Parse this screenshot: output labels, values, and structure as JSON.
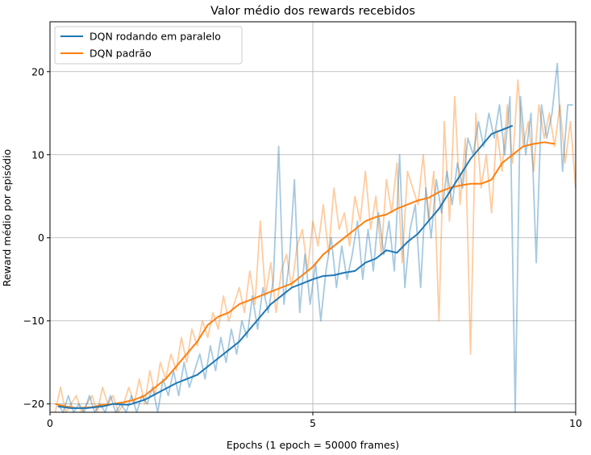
{
  "chart_data": {
    "type": "line",
    "title": "Valor médio dos rewards recebidos",
    "xlabel": "Epochs (1 epoch = 50000 frames)",
    "ylabel": "Reward médio por episódio",
    "xlim": [
      0,
      10
    ],
    "ylim": [
      -21,
      26
    ],
    "x_ticks": [
      0,
      5,
      10
    ],
    "y_ticks": [
      -20,
      -10,
      0,
      10,
      20
    ],
    "grid": true,
    "legend_position": "top-left",
    "series": [
      {
        "name": "DQN rodando em paralelo",
        "color": "#1f77b4",
        "smoothed": [
          [
            0.15,
            -20.3
          ],
          [
            0.4,
            -20.5
          ],
          [
            0.7,
            -20.5
          ],
          [
            1.0,
            -20.3
          ],
          [
            1.2,
            -20.0
          ],
          [
            1.5,
            -20.1
          ],
          [
            1.8,
            -19.5
          ],
          [
            2.1,
            -18.5
          ],
          [
            2.4,
            -17.5
          ],
          [
            2.6,
            -17.0
          ],
          [
            2.8,
            -16.5
          ],
          [
            3.0,
            -15.5
          ],
          [
            3.2,
            -14.5
          ],
          [
            3.4,
            -13.5
          ],
          [
            3.6,
            -12.5
          ],
          [
            3.8,
            -11.0
          ],
          [
            4.0,
            -9.5
          ],
          [
            4.2,
            -8.0
          ],
          [
            4.4,
            -7.0
          ],
          [
            4.6,
            -6.0
          ],
          [
            4.8,
            -5.5
          ],
          [
            5.0,
            -5.0
          ],
          [
            5.2,
            -4.6
          ],
          [
            5.4,
            -4.5
          ],
          [
            5.6,
            -4.2
          ],
          [
            5.8,
            -4.0
          ],
          [
            6.0,
            -3.0
          ],
          [
            6.2,
            -2.5
          ],
          [
            6.4,
            -1.5
          ],
          [
            6.6,
            -1.8
          ],
          [
            6.8,
            -0.5
          ],
          [
            7.0,
            0.5
          ],
          [
            7.2,
            2.0
          ],
          [
            7.4,
            3.5
          ],
          [
            7.6,
            5.5
          ],
          [
            7.8,
            7.5
          ],
          [
            8.0,
            9.5
          ],
          [
            8.2,
            11.0
          ],
          [
            8.4,
            12.5
          ],
          [
            8.6,
            13.0
          ],
          [
            8.8,
            13.5
          ]
        ],
        "raw": [
          [
            0.15,
            -20
          ],
          [
            0.25,
            -21
          ],
          [
            0.35,
            -19
          ],
          [
            0.45,
            -21
          ],
          [
            0.55,
            -20
          ],
          [
            0.65,
            -21
          ],
          [
            0.75,
            -19
          ],
          [
            0.85,
            -21
          ],
          [
            0.95,
            -20
          ],
          [
            1.05,
            -21
          ],
          [
            1.15,
            -19
          ],
          [
            1.25,
            -21
          ],
          [
            1.35,
            -20
          ],
          [
            1.45,
            -21
          ],
          [
            1.55,
            -19
          ],
          [
            1.65,
            -21
          ],
          [
            1.75,
            -19
          ],
          [
            1.85,
            -20
          ],
          [
            1.95,
            -18
          ],
          [
            2.05,
            -21
          ],
          [
            2.15,
            -17
          ],
          [
            2.25,
            -19
          ],
          [
            2.35,
            -16
          ],
          [
            2.45,
            -19
          ],
          [
            2.55,
            -15
          ],
          [
            2.65,
            -18
          ],
          [
            2.75,
            -16
          ],
          [
            2.85,
            -14
          ],
          [
            2.95,
            -17
          ],
          [
            3.05,
            -13
          ],
          [
            3.15,
            -16
          ],
          [
            3.25,
            -12
          ],
          [
            3.35,
            -15
          ],
          [
            3.45,
            -11
          ],
          [
            3.55,
            -14
          ],
          [
            3.65,
            -10
          ],
          [
            3.75,
            -12
          ],
          [
            3.85,
            -7
          ],
          [
            3.95,
            -11
          ],
          [
            4.05,
            -6
          ],
          [
            4.15,
            -9
          ],
          [
            4.25,
            -5
          ],
          [
            4.35,
            11
          ],
          [
            4.45,
            -8
          ],
          [
            4.55,
            -3
          ],
          [
            4.65,
            7
          ],
          [
            4.75,
            -9
          ],
          [
            4.85,
            -2
          ],
          [
            4.95,
            -8
          ],
          [
            5.05,
            -3
          ],
          [
            5.15,
            -10
          ],
          [
            5.25,
            -4
          ],
          [
            5.35,
            0
          ],
          [
            5.45,
            -6
          ],
          [
            5.55,
            -1
          ],
          [
            5.65,
            -5
          ],
          [
            5.75,
            -2
          ],
          [
            5.85,
            2
          ],
          [
            5.95,
            -5
          ],
          [
            6.05,
            1
          ],
          [
            6.15,
            -4
          ],
          [
            6.25,
            3
          ],
          [
            6.35,
            -2
          ],
          [
            6.45,
            2
          ],
          [
            6.55,
            -4
          ],
          [
            6.65,
            10
          ],
          [
            6.75,
            -6
          ],
          [
            6.85,
            1
          ],
          [
            6.95,
            4
          ],
          [
            7.05,
            -6
          ],
          [
            7.15,
            6
          ],
          [
            7.25,
            0
          ],
          [
            7.35,
            7
          ],
          [
            7.45,
            3
          ],
          [
            7.55,
            8
          ],
          [
            7.65,
            4
          ],
          [
            7.75,
            9
          ],
          [
            7.85,
            6
          ],
          [
            7.95,
            12
          ],
          [
            8.05,
            10
          ],
          [
            8.15,
            14
          ],
          [
            8.25,
            11
          ],
          [
            8.35,
            15
          ],
          [
            8.45,
            12
          ],
          [
            8.55,
            16
          ],
          [
            8.65,
            10
          ],
          [
            8.75,
            17
          ],
          [
            8.85,
            -21
          ],
          [
            8.95,
            17
          ],
          [
            9.05,
            10
          ],
          [
            9.15,
            15
          ],
          [
            9.25,
            -3
          ],
          [
            9.35,
            16
          ],
          [
            9.45,
            12
          ],
          [
            9.55,
            15
          ],
          [
            9.65,
            21
          ],
          [
            9.75,
            8
          ],
          [
            9.85,
            16
          ],
          [
            9.95,
            16
          ]
        ]
      },
      {
        "name": "DQN padrão",
        "color": "#ff7f0e",
        "smoothed": [
          [
            0.1,
            -20.0
          ],
          [
            0.3,
            -20.3
          ],
          [
            0.5,
            -20.5
          ],
          [
            0.8,
            -20.4
          ],
          [
            1.0,
            -20.1
          ],
          [
            1.2,
            -20.0
          ],
          [
            1.4,
            -19.8
          ],
          [
            1.6,
            -19.5
          ],
          [
            1.8,
            -19.0
          ],
          [
            2.0,
            -18.0
          ],
          [
            2.2,
            -17.0
          ],
          [
            2.4,
            -15.5
          ],
          [
            2.6,
            -14.0
          ],
          [
            2.8,
            -12.5
          ],
          [
            3.0,
            -10.5
          ],
          [
            3.2,
            -9.5
          ],
          [
            3.4,
            -9.0
          ],
          [
            3.6,
            -8.0
          ],
          [
            3.8,
            -7.5
          ],
          [
            4.0,
            -7.0
          ],
          [
            4.2,
            -6.5
          ],
          [
            4.4,
            -6.0
          ],
          [
            4.6,
            -5.5
          ],
          [
            4.8,
            -4.5
          ],
          [
            5.0,
            -3.5
          ],
          [
            5.2,
            -2.0
          ],
          [
            5.4,
            -1.0
          ],
          [
            5.6,
            0.0
          ],
          [
            5.8,
            1.0
          ],
          [
            6.0,
            2.0
          ],
          [
            6.2,
            2.5
          ],
          [
            6.4,
            2.8
          ],
          [
            6.6,
            3.5
          ],
          [
            6.8,
            4.0
          ],
          [
            7.0,
            4.5
          ],
          [
            7.2,
            4.8
          ],
          [
            7.4,
            5.5
          ],
          [
            7.6,
            6.0
          ],
          [
            7.8,
            6.3
          ],
          [
            8.0,
            6.5
          ],
          [
            8.2,
            6.5
          ],
          [
            8.4,
            7.0
          ],
          [
            8.6,
            9.0
          ],
          [
            8.8,
            10.0
          ],
          [
            9.0,
            11.0
          ],
          [
            9.2,
            11.3
          ],
          [
            9.4,
            11.5
          ],
          [
            9.6,
            11.3
          ]
        ],
        "raw": [
          [
            0.1,
            -21
          ],
          [
            0.2,
            -18
          ],
          [
            0.3,
            -21
          ],
          [
            0.4,
            -20
          ],
          [
            0.5,
            -19
          ],
          [
            0.6,
            -21
          ],
          [
            0.7,
            -20
          ],
          [
            0.8,
            -19
          ],
          [
            0.9,
            -21
          ],
          [
            1.0,
            -18
          ],
          [
            1.1,
            -20
          ],
          [
            1.2,
            -19
          ],
          [
            1.3,
            -21
          ],
          [
            1.4,
            -20
          ],
          [
            1.5,
            -18
          ],
          [
            1.6,
            -20
          ],
          [
            1.7,
            -17
          ],
          [
            1.8,
            -20
          ],
          [
            1.9,
            -16
          ],
          [
            2.0,
            -19
          ],
          [
            2.1,
            -15
          ],
          [
            2.2,
            -17
          ],
          [
            2.3,
            -14
          ],
          [
            2.4,
            -16
          ],
          [
            2.5,
            -12
          ],
          [
            2.6,
            -15
          ],
          [
            2.7,
            -11
          ],
          [
            2.8,
            -13
          ],
          [
            2.9,
            -10
          ],
          [
            3.0,
            -12
          ],
          [
            3.1,
            -9
          ],
          [
            3.2,
            -11
          ],
          [
            3.3,
            -7
          ],
          [
            3.4,
            -10
          ],
          [
            3.5,
            -8
          ],
          [
            3.6,
            -6
          ],
          [
            3.7,
            -9
          ],
          [
            3.8,
            -4
          ],
          [
            3.9,
            -8
          ],
          [
            4.0,
            2
          ],
          [
            4.1,
            -7
          ],
          [
            4.2,
            -3
          ],
          [
            4.3,
            -9
          ],
          [
            4.4,
            -4
          ],
          [
            4.5,
            -2
          ],
          [
            4.6,
            -6
          ],
          [
            4.7,
            -1
          ],
          [
            4.8,
            1
          ],
          [
            4.9,
            -4
          ],
          [
            5.0,
            2
          ],
          [
            5.1,
            -1
          ],
          [
            5.2,
            4
          ],
          [
            5.3,
            -2
          ],
          [
            5.4,
            6
          ],
          [
            5.5,
            1
          ],
          [
            5.6,
            3
          ],
          [
            5.7,
            -1
          ],
          [
            5.8,
            5
          ],
          [
            5.9,
            2
          ],
          [
            6.0,
            8
          ],
          [
            6.1,
            1
          ],
          [
            6.2,
            5
          ],
          [
            6.3,
            -2
          ],
          [
            6.4,
            7
          ],
          [
            6.5,
            3
          ],
          [
            6.6,
            9
          ],
          [
            6.7,
            -3
          ],
          [
            6.8,
            8
          ],
          [
            6.9,
            6
          ],
          [
            7.0,
            4
          ],
          [
            7.1,
            10
          ],
          [
            7.2,
            2
          ],
          [
            7.3,
            8
          ],
          [
            7.4,
            -10
          ],
          [
            7.5,
            14
          ],
          [
            7.6,
            2
          ],
          [
            7.7,
            17
          ],
          [
            7.8,
            4
          ],
          [
            7.9,
            12
          ],
          [
            8.0,
            -14
          ],
          [
            8.1,
            15
          ],
          [
            8.2,
            6
          ],
          [
            8.3,
            10
          ],
          [
            8.4,
            3
          ],
          [
            8.5,
            13
          ],
          [
            8.6,
            8
          ],
          [
            8.7,
            16
          ],
          [
            8.8,
            9
          ],
          [
            8.9,
            19
          ],
          [
            9.0,
            11
          ],
          [
            9.1,
            14
          ],
          [
            9.2,
            8
          ],
          [
            9.3,
            16
          ],
          [
            9.4,
            12
          ],
          [
            9.5,
            15
          ],
          [
            9.6,
            11
          ],
          [
            9.7,
            16
          ],
          [
            9.8,
            9
          ],
          [
            9.9,
            14
          ],
          [
            10.0,
            6
          ]
        ]
      }
    ]
  }
}
